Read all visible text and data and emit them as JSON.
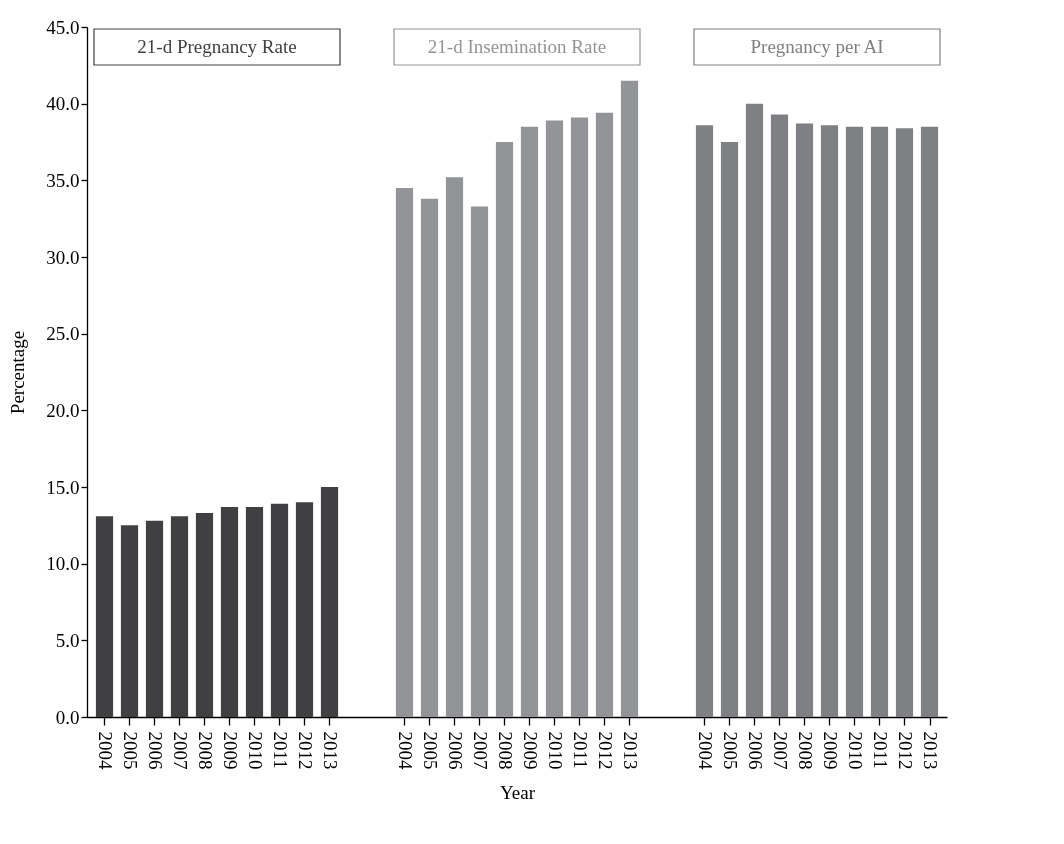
{
  "chart_data": {
    "type": "bar",
    "xlabel": "Year",
    "ylabel": "Percentage",
    "categories": [
      "2004",
      "2005",
      "2006",
      "2007",
      "2008",
      "2009",
      "2010",
      "2011",
      "2012",
      "2013",
      null,
      null,
      "2004",
      "2005",
      "2006",
      "2007",
      "2008",
      "2009",
      "2010",
      "2011",
      "2012",
      "2013",
      null,
      null,
      "2004",
      "2005",
      "2006",
      "2007",
      "2008",
      "2009",
      "2010",
      "2011",
      "2012",
      "2013"
    ],
    "series": [
      {
        "name": "21-d Pregnancy Rate",
        "color": "#404042",
        "values": [
          13.1,
          12.5,
          12.8,
          13.1,
          13.3,
          13.7,
          13.7,
          13.9,
          14.0,
          15.0,
          null,
          null,
          null,
          null,
          null,
          null,
          null,
          null,
          null,
          null,
          null,
          null,
          null,
          null,
          null,
          null,
          null,
          null,
          null,
          null,
          null,
          null,
          null,
          null
        ]
      },
      {
        "name": "21-d Insemination Rate",
        "color": "#939497",
        "values": [
          null,
          null,
          null,
          null,
          null,
          null,
          null,
          null,
          null,
          null,
          null,
          null,
          34.5,
          33.8,
          35.2,
          33.3,
          37.5,
          38.5,
          38.9,
          39.1,
          39.4,
          41.5,
          null,
          null,
          null,
          null,
          null,
          null,
          null,
          null,
          null,
          null,
          null,
          null
        ]
      },
      {
        "name": "Pregnancy per AI",
        "color": "#7f8083",
        "values": [
          null,
          null,
          null,
          null,
          null,
          null,
          null,
          null,
          null,
          null,
          null,
          null,
          null,
          null,
          null,
          null,
          null,
          null,
          null,
          null,
          null,
          null,
          null,
          null,
          38.6,
          37.5,
          40.0,
          39.3,
          38.7,
          38.6,
          38.5,
          38.5,
          38.4,
          38.5
        ]
      }
    ],
    "ylim": [
      0,
      45
    ],
    "yticks": [
      {
        "value": 0,
        "label": "0.0"
      },
      {
        "value": 5,
        "label": "5.0"
      },
      {
        "value": 10,
        "label": "10.0"
      },
      {
        "value": 15,
        "label": "15.0"
      },
      {
        "value": 20,
        "label": "20.0"
      },
      {
        "value": 25,
        "label": "25.0"
      },
      {
        "value": 30,
        "label": "30.0"
      },
      {
        "value": 35,
        "label": "35.0"
      },
      {
        "value": 40,
        "label": "40.0"
      },
      {
        "value": 45,
        "label": "45.0"
      }
    ]
  }
}
